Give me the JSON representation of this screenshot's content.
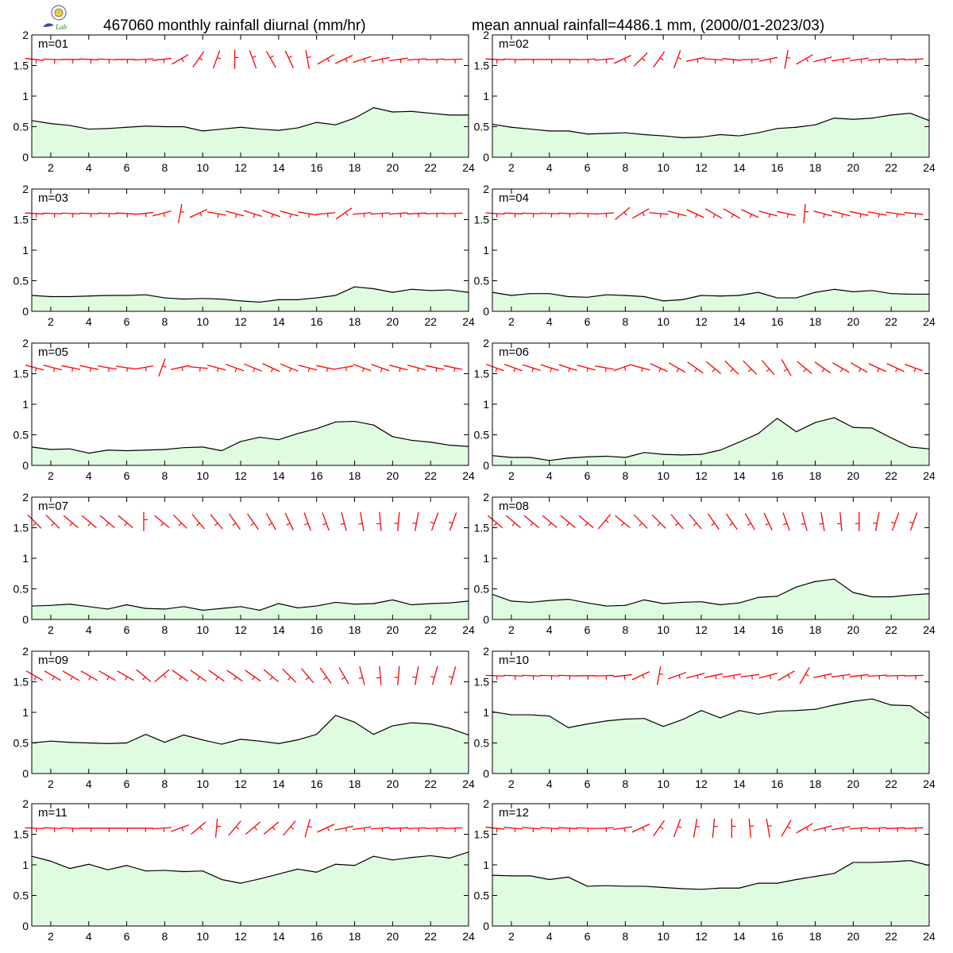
{
  "header": {
    "title_left": "467060 monthly rainfall diurnal (mm/hr)",
    "title_right": "mean annual rainfall=4486.1 mm, (2000/01-2023/03)",
    "logo_text": "Lab"
  },
  "colors": {
    "area_fill": "#e0fce0",
    "line": "#000000",
    "wind_barb": "#ff0000",
    "axis": "#000000"
  },
  "chart_data": [
    {
      "type": "area",
      "label": "m=01",
      "x": [
        1,
        2,
        3,
        4,
        5,
        6,
        7,
        8,
        9,
        10,
        11,
        12,
        13,
        14,
        15,
        16,
        17,
        18,
        19,
        20,
        21,
        22,
        23,
        24
      ],
      "values": [
        0.6,
        0.55,
        0.52,
        0.46,
        0.47,
        0.49,
        0.51,
        0.5,
        0.5,
        0.43,
        0.46,
        0.49,
        0.46,
        0.44,
        0.48,
        0.57,
        0.53,
        0.64,
        0.81,
        0.74,
        0.75,
        0.72,
        0.69,
        0.69
      ],
      "ylim": [
        0,
        2
      ],
      "xlim": [
        1,
        24
      ],
      "yticks": [
        0,
        0.5,
        1,
        1.5,
        2
      ],
      "xticks": [
        2,
        4,
        6,
        8,
        10,
        12,
        14,
        16,
        18,
        20,
        22,
        24
      ]
    },
    {
      "type": "area",
      "label": "m=02",
      "x": [
        1,
        2,
        3,
        4,
        5,
        6,
        7,
        8,
        9,
        10,
        11,
        12,
        13,
        14,
        15,
        16,
        17,
        18,
        19,
        20,
        21,
        22,
        23,
        24
      ],
      "values": [
        0.54,
        0.49,
        0.46,
        0.43,
        0.43,
        0.38,
        0.39,
        0.4,
        0.37,
        0.35,
        0.32,
        0.33,
        0.37,
        0.35,
        0.4,
        0.47,
        0.49,
        0.53,
        0.64,
        0.62,
        0.64,
        0.69,
        0.72,
        0.6
      ],
      "ylim": [
        0,
        2
      ],
      "xlim": [
        1,
        24
      ],
      "yticks": [
        0,
        0.5,
        1,
        1.5,
        2
      ],
      "xticks": [
        2,
        4,
        6,
        8,
        10,
        12,
        14,
        16,
        18,
        20,
        22,
        24
      ]
    },
    {
      "type": "area",
      "label": "m=03",
      "x": [
        1,
        2,
        3,
        4,
        5,
        6,
        7,
        8,
        9,
        10,
        11,
        12,
        13,
        14,
        15,
        16,
        17,
        18,
        19,
        20,
        21,
        22,
        23,
        24
      ],
      "values": [
        0.26,
        0.24,
        0.24,
        0.25,
        0.26,
        0.26,
        0.27,
        0.22,
        0.2,
        0.21,
        0.2,
        0.17,
        0.15,
        0.19,
        0.19,
        0.22,
        0.26,
        0.4,
        0.37,
        0.31,
        0.36,
        0.34,
        0.35,
        0.31
      ],
      "ylim": [
        0,
        2
      ],
      "xlim": [
        1,
        24
      ],
      "yticks": [
        0,
        0.5,
        1,
        1.5,
        2
      ],
      "xticks": [
        2,
        4,
        6,
        8,
        10,
        12,
        14,
        16,
        18,
        20,
        22,
        24
      ]
    },
    {
      "type": "area",
      "label": "m=04",
      "x": [
        1,
        2,
        3,
        4,
        5,
        6,
        7,
        8,
        9,
        10,
        11,
        12,
        13,
        14,
        15,
        16,
        17,
        18,
        19,
        20,
        21,
        22,
        23,
        24
      ],
      "values": [
        0.31,
        0.26,
        0.29,
        0.29,
        0.24,
        0.23,
        0.27,
        0.26,
        0.24,
        0.17,
        0.19,
        0.26,
        0.25,
        0.26,
        0.31,
        0.22,
        0.22,
        0.31,
        0.36,
        0.32,
        0.34,
        0.29,
        0.28,
        0.28
      ],
      "ylim": [
        0,
        2
      ],
      "xlim": [
        1,
        24
      ],
      "yticks": [
        0,
        0.5,
        1,
        1.5,
        2
      ],
      "xticks": [
        2,
        4,
        6,
        8,
        10,
        12,
        14,
        16,
        18,
        20,
        22,
        24
      ]
    },
    {
      "type": "area",
      "label": "m=05",
      "x": [
        1,
        2,
        3,
        4,
        5,
        6,
        7,
        8,
        9,
        10,
        11,
        12,
        13,
        14,
        15,
        16,
        17,
        18,
        19,
        20,
        21,
        22,
        23,
        24
      ],
      "values": [
        0.3,
        0.26,
        0.27,
        0.2,
        0.25,
        0.24,
        0.25,
        0.26,
        0.29,
        0.3,
        0.24,
        0.39,
        0.46,
        0.42,
        0.52,
        0.6,
        0.71,
        0.72,
        0.66,
        0.47,
        0.41,
        0.38,
        0.33,
        0.31
      ],
      "ylim": [
        0,
        2
      ],
      "xlim": [
        1,
        24
      ],
      "yticks": [
        0,
        0.5,
        1,
        1.5,
        2
      ],
      "xticks": [
        2,
        4,
        6,
        8,
        10,
        12,
        14,
        16,
        18,
        20,
        22,
        24
      ]
    },
    {
      "type": "area",
      "label": "m=06",
      "x": [
        1,
        2,
        3,
        4,
        5,
        6,
        7,
        8,
        9,
        10,
        11,
        12,
        13,
        14,
        15,
        16,
        17,
        18,
        19,
        20,
        21,
        22,
        23,
        24
      ],
      "values": [
        0.16,
        0.13,
        0.13,
        0.08,
        0.12,
        0.14,
        0.15,
        0.13,
        0.21,
        0.18,
        0.17,
        0.18,
        0.25,
        0.38,
        0.52,
        0.77,
        0.55,
        0.7,
        0.78,
        0.62,
        0.61,
        0.45,
        0.3,
        0.27
      ],
      "ylim": [
        0,
        2
      ],
      "xlim": [
        1,
        24
      ],
      "yticks": [
        0,
        0.5,
        1,
        1.5,
        2
      ],
      "xticks": [
        2,
        4,
        6,
        8,
        10,
        12,
        14,
        16,
        18,
        20,
        22,
        24
      ]
    },
    {
      "type": "area",
      "label": "m=07",
      "x": [
        1,
        2,
        3,
        4,
        5,
        6,
        7,
        8,
        9,
        10,
        11,
        12,
        13,
        14,
        15,
        16,
        17,
        18,
        19,
        20,
        21,
        22,
        23,
        24
      ],
      "values": [
        0.22,
        0.23,
        0.25,
        0.21,
        0.17,
        0.24,
        0.18,
        0.17,
        0.21,
        0.15,
        0.18,
        0.21,
        0.15,
        0.26,
        0.19,
        0.22,
        0.28,
        0.25,
        0.26,
        0.32,
        0.24,
        0.26,
        0.27,
        0.3
      ],
      "ylim": [
        0,
        2
      ],
      "xlim": [
        1,
        24
      ],
      "yticks": [
        0,
        0.5,
        1,
        1.5,
        2
      ],
      "xticks": [
        2,
        4,
        6,
        8,
        10,
        12,
        14,
        16,
        18,
        20,
        22,
        24
      ]
    },
    {
      "type": "area",
      "label": "m=08",
      "x": [
        1,
        2,
        3,
        4,
        5,
        6,
        7,
        8,
        9,
        10,
        11,
        12,
        13,
        14,
        15,
        16,
        17,
        18,
        19,
        20,
        21,
        22,
        23,
        24
      ],
      "values": [
        0.41,
        0.3,
        0.28,
        0.31,
        0.33,
        0.27,
        0.22,
        0.23,
        0.32,
        0.26,
        0.28,
        0.29,
        0.24,
        0.27,
        0.36,
        0.38,
        0.53,
        0.62,
        0.66,
        0.44,
        0.37,
        0.37,
        0.4,
        0.42
      ],
      "ylim": [
        0,
        2
      ],
      "xlim": [
        1,
        24
      ],
      "yticks": [
        0,
        0.5,
        1,
        1.5,
        2
      ],
      "xticks": [
        2,
        4,
        6,
        8,
        10,
        12,
        14,
        16,
        18,
        20,
        22,
        24
      ]
    },
    {
      "type": "area",
      "label": "m=09",
      "x": [
        1,
        2,
        3,
        4,
        5,
        6,
        7,
        8,
        9,
        10,
        11,
        12,
        13,
        14,
        15,
        16,
        17,
        18,
        19,
        20,
        21,
        22,
        23,
        24
      ],
      "values": [
        0.5,
        0.53,
        0.51,
        0.5,
        0.49,
        0.5,
        0.64,
        0.51,
        0.63,
        0.55,
        0.48,
        0.56,
        0.53,
        0.49,
        0.55,
        0.64,
        0.95,
        0.84,
        0.64,
        0.78,
        0.83,
        0.81,
        0.74,
        0.63
      ],
      "ylim": [
        0,
        2
      ],
      "xlim": [
        1,
        24
      ],
      "yticks": [
        0,
        0.5,
        1,
        1.5,
        2
      ],
      "xticks": [
        2,
        4,
        6,
        8,
        10,
        12,
        14,
        16,
        18,
        20,
        22,
        24
      ]
    },
    {
      "type": "area",
      "label": "m=10",
      "x": [
        1,
        2,
        3,
        4,
        5,
        6,
        7,
        8,
        9,
        10,
        11,
        12,
        13,
        14,
        15,
        16,
        17,
        18,
        19,
        20,
        21,
        22,
        23,
        24
      ],
      "values": [
        1.01,
        0.96,
        0.96,
        0.94,
        0.75,
        0.81,
        0.86,
        0.89,
        0.9,
        0.77,
        0.88,
        1.03,
        0.91,
        1.03,
        0.97,
        1.02,
        1.03,
        1.05,
        1.12,
        1.18,
        1.22,
        1.12,
        1.11,
        0.9
      ],
      "ylim": [
        0,
        2
      ],
      "xlim": [
        1,
        24
      ],
      "yticks": [
        0,
        0.5,
        1,
        1.5,
        2
      ],
      "xticks": [
        2,
        4,
        6,
        8,
        10,
        12,
        14,
        16,
        18,
        20,
        22,
        24
      ]
    },
    {
      "type": "area",
      "label": "m=11",
      "x": [
        1,
        2,
        3,
        4,
        5,
        6,
        7,
        8,
        9,
        10,
        11,
        12,
        13,
        14,
        15,
        16,
        17,
        18,
        19,
        20,
        21,
        22,
        23,
        24
      ],
      "values": [
        1.14,
        1.06,
        0.94,
        1.01,
        0.92,
        0.99,
        0.9,
        0.91,
        0.89,
        0.9,
        0.76,
        0.7,
        0.77,
        0.85,
        0.93,
        0.88,
        1.01,
        0.99,
        1.14,
        1.08,
        1.12,
        1.15,
        1.11,
        1.21
      ],
      "ylim": [
        0,
        2
      ],
      "xlim": [
        1,
        24
      ],
      "yticks": [
        0,
        0.5,
        1,
        1.5,
        2
      ],
      "xticks": [
        2,
        4,
        6,
        8,
        10,
        12,
        14,
        16,
        18,
        20,
        22,
        24
      ]
    },
    {
      "type": "area",
      "label": "m=12",
      "x": [
        1,
        2,
        3,
        4,
        5,
        6,
        7,
        8,
        9,
        10,
        11,
        12,
        13,
        14,
        15,
        16,
        17,
        18,
        19,
        20,
        21,
        22,
        23,
        24
      ],
      "values": [
        0.83,
        0.82,
        0.82,
        0.76,
        0.8,
        0.65,
        0.66,
        0.65,
        0.65,
        0.63,
        0.61,
        0.6,
        0.62,
        0.62,
        0.7,
        0.7,
        0.76,
        0.81,
        0.86,
        1.04,
        1.04,
        1.05,
        1.07,
        0.99
      ],
      "ylim": [
        0,
        2
      ],
      "xlim": [
        1,
        24
      ],
      "yticks": [
        0,
        0.5,
        1,
        1.5,
        2
      ],
      "xticks": [
        2,
        4,
        6,
        8,
        10,
        12,
        14,
        16,
        18,
        20,
        22,
        24
      ]
    }
  ],
  "wind_barbs": [
    {
      "month": "01",
      "angles_deg": [
        6,
        2,
        0,
        3,
        2,
        0,
        -4,
        -6,
        -30,
        -55,
        -70,
        -90,
        -110,
        -120,
        -115,
        -100,
        -30,
        -25,
        -18,
        -12,
        -8,
        -4,
        -2,
        -2
      ]
    },
    {
      "month": "02",
      "angles_deg": [
        3,
        2,
        0,
        0,
        0,
        -2,
        -5,
        -25,
        -45,
        -55,
        -70,
        -12,
        4,
        6,
        -2,
        -12,
        -80,
        -30,
        -15,
        -10,
        -8,
        -5,
        -3,
        -3
      ]
    },
    {
      "month": "03",
      "angles_deg": [
        3,
        2,
        2,
        2,
        2,
        3,
        -6,
        -15,
        -80,
        -25,
        10,
        15,
        18,
        20,
        15,
        10,
        -5,
        -35,
        -5,
        -4,
        -4,
        -3,
        -2,
        -2
      ]
    },
    {
      "month": "04",
      "angles_deg": [
        4,
        3,
        2,
        2,
        2,
        2,
        -4,
        -40,
        -30,
        5,
        15,
        25,
        30,
        30,
        25,
        15,
        12,
        -85,
        15,
        15,
        12,
        10,
        8,
        6
      ]
    },
    {
      "month": "05",
      "angles_deg": [
        15,
        14,
        12,
        12,
        10,
        8,
        -10,
        -70,
        -12,
        5,
        15,
        20,
        22,
        25,
        22,
        15,
        12,
        -10,
        20,
        20,
        15,
        15,
        12,
        12
      ]
    },
    {
      "month": "06",
      "angles_deg": [
        20,
        20,
        18,
        18,
        18,
        15,
        10,
        -20,
        15,
        25,
        30,
        35,
        40,
        45,
        45,
        50,
        60,
        40,
        35,
        30,
        30,
        25,
        25,
        20
      ]
    },
    {
      "month": "07",
      "angles_deg": [
        45,
        45,
        40,
        40,
        40,
        40,
        -90,
        40,
        45,
        50,
        50,
        55,
        55,
        60,
        65,
        70,
        70,
        75,
        80,
        85,
        95,
        100,
        110,
        110
      ]
    },
    {
      "month": "08",
      "angles_deg": [
        40,
        40,
        40,
        40,
        40,
        40,
        -50,
        40,
        45,
        45,
        50,
        50,
        55,
        55,
        60,
        65,
        70,
        75,
        80,
        85,
        90,
        100,
        110,
        110
      ]
    },
    {
      "month": "09",
      "angles_deg": [
        30,
        30,
        30,
        30,
        30,
        30,
        40,
        -40,
        35,
        35,
        35,
        35,
        35,
        40,
        45,
        50,
        55,
        60,
        75,
        85,
        95,
        100,
        105,
        105
      ]
    },
    {
      "month": "10",
      "angles_deg": [
        2,
        2,
        2,
        2,
        2,
        0,
        -2,
        -6,
        -25,
        -80,
        -20,
        -15,
        -12,
        -10,
        -8,
        -15,
        -30,
        -60,
        -12,
        -8,
        -6,
        -4,
        -2,
        -2
      ]
    },
    {
      "month": "11",
      "angles_deg": [
        2,
        2,
        2,
        0,
        0,
        0,
        0,
        -4,
        -20,
        -40,
        -85,
        -50,
        -40,
        -40,
        -50,
        -75,
        -25,
        -12,
        -8,
        -5,
        -3,
        -2,
        -2,
        -2
      ]
    },
    {
      "month": "12",
      "angles_deg": [
        6,
        5,
        5,
        4,
        3,
        2,
        -2,
        -8,
        -25,
        -55,
        -70,
        -80,
        -85,
        -90,
        -95,
        -100,
        -60,
        -30,
        -15,
        -10,
        -5,
        -4,
        -3,
        -3
      ]
    }
  ]
}
